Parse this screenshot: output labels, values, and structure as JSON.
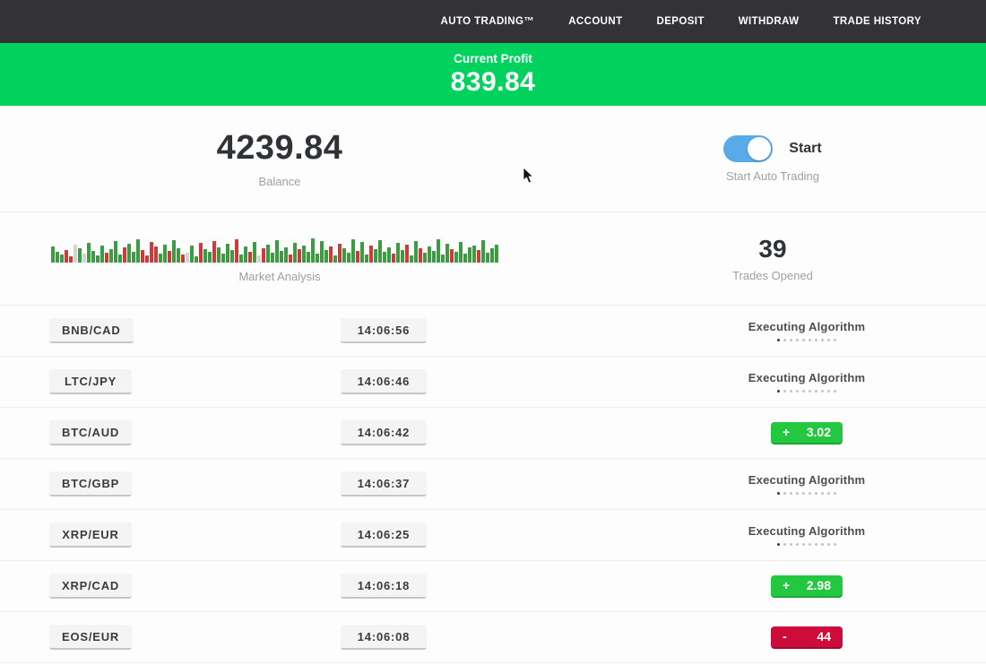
{
  "nav": {
    "items": [
      {
        "label": "AUTO TRADING™"
      },
      {
        "label": "ACCOUNT"
      },
      {
        "label": "DEPOSIT"
      },
      {
        "label": "WITHDRAW"
      },
      {
        "label": "TRADE HISTORY"
      }
    ]
  },
  "banner": {
    "label": "Current Profit",
    "value": "839.84",
    "color": "#00d35d"
  },
  "account": {
    "balance": "4239.84",
    "balance_label": "Balance",
    "toggle_label": "Start",
    "toggle_state": "on",
    "toggle_color": "#58aae8",
    "toggle_sub_label": "Start Auto Trading"
  },
  "market": {
    "chart_label": "Market Analysis",
    "trades_opened": "39",
    "trades_opened_label": "Trades Opened"
  },
  "chart_data": {
    "type": "bar",
    "title": "Market Analysis",
    "note": "decorative candlestick-style volume bars, bottom-aligned, heights in px",
    "colors": {
      "g": "#3d9c42",
      "r": "#cc3a3a",
      "l": "#cfd8cf"
    },
    "bars": [
      [
        18,
        "g"
      ],
      [
        12,
        "g"
      ],
      [
        9,
        "g"
      ],
      [
        14,
        "r"
      ],
      [
        7,
        "r"
      ],
      [
        20,
        "l"
      ],
      [
        16,
        "g"
      ],
      [
        10,
        "l"
      ],
      [
        22,
        "g"
      ],
      [
        13,
        "g"
      ],
      [
        8,
        "g"
      ],
      [
        19,
        "g"
      ],
      [
        11,
        "r"
      ],
      [
        15,
        "g"
      ],
      [
        24,
        "g"
      ],
      [
        9,
        "g"
      ],
      [
        17,
        "r"
      ],
      [
        21,
        "g"
      ],
      [
        12,
        "g"
      ],
      [
        26,
        "g"
      ],
      [
        14,
        "r"
      ],
      [
        8,
        "r"
      ],
      [
        23,
        "r"
      ],
      [
        18,
        "r"
      ],
      [
        10,
        "g"
      ],
      [
        20,
        "g"
      ],
      [
        13,
        "r"
      ],
      [
        25,
        "g"
      ],
      [
        16,
        "g"
      ],
      [
        9,
        "r"
      ],
      [
        11,
        "l"
      ],
      [
        19,
        "g"
      ],
      [
        7,
        "g"
      ],
      [
        22,
        "r"
      ],
      [
        15,
        "g"
      ],
      [
        12,
        "g"
      ],
      [
        24,
        "r"
      ],
      [
        17,
        "g"
      ],
      [
        10,
        "g"
      ],
      [
        21,
        "g"
      ],
      [
        14,
        "g"
      ],
      [
        26,
        "r"
      ],
      [
        9,
        "g"
      ],
      [
        18,
        "g"
      ],
      [
        12,
        "r"
      ],
      [
        23,
        "g"
      ],
      [
        8,
        "l"
      ],
      [
        16,
        "r"
      ],
      [
        20,
        "g"
      ],
      [
        11,
        "g"
      ],
      [
        25,
        "g"
      ],
      [
        13,
        "g"
      ],
      [
        17,
        "g"
      ],
      [
        9,
        "r"
      ],
      [
        22,
        "g"
      ],
      [
        15,
        "r"
      ],
      [
        19,
        "g"
      ],
      [
        12,
        "g"
      ],
      [
        27,
        "g"
      ],
      [
        10,
        "g"
      ],
      [
        24,
        "g"
      ],
      [
        14,
        "g"
      ],
      [
        18,
        "r"
      ],
      [
        8,
        "g"
      ],
      [
        21,
        "r"
      ],
      [
        16,
        "g"
      ],
      [
        11,
        "g"
      ],
      [
        26,
        "g"
      ],
      [
        13,
        "r"
      ],
      [
        23,
        "g"
      ],
      [
        9,
        "g"
      ],
      [
        19,
        "r"
      ],
      [
        15,
        "g"
      ],
      [
        25,
        "g"
      ],
      [
        12,
        "g"
      ],
      [
        17,
        "g"
      ],
      [
        10,
        "r"
      ],
      [
        22,
        "g"
      ],
      [
        14,
        "g"
      ],
      [
        20,
        "r"
      ],
      [
        8,
        "g"
      ],
      [
        24,
        "g"
      ],
      [
        16,
        "r"
      ],
      [
        11,
        "g"
      ],
      [
        18,
        "g"
      ],
      [
        13,
        "g"
      ],
      [
        26,
        "g"
      ],
      [
        9,
        "g"
      ],
      [
        21,
        "g"
      ],
      [
        15,
        "r"
      ],
      [
        12,
        "g"
      ],
      [
        23,
        "g"
      ],
      [
        10,
        "g"
      ],
      [
        17,
        "g"
      ],
      [
        19,
        "g"
      ],
      [
        14,
        "r"
      ],
      [
        25,
        "g"
      ],
      [
        11,
        "g"
      ],
      [
        16,
        "g"
      ],
      [
        20,
        "g"
      ]
    ]
  },
  "status_defaults": {
    "executing_label": "Executing Algorithm",
    "dots_count": 10,
    "active_dot_index": 0
  },
  "rows": [
    {
      "pair": "BNB/CAD",
      "time": "14:06:56",
      "status": "executing"
    },
    {
      "pair": "LTC/JPY",
      "time": "14:06:46",
      "status": "executing"
    },
    {
      "pair": "BTC/AUD",
      "time": "14:06:42",
      "status": "profit",
      "sign": "+",
      "value": "3.02"
    },
    {
      "pair": "BTC/GBP",
      "time": "14:06:37",
      "status": "executing"
    },
    {
      "pair": "XRP/EUR",
      "time": "14:06:25",
      "status": "executing"
    },
    {
      "pair": "XRP/CAD",
      "time": "14:06:18",
      "status": "profit",
      "sign": "+",
      "value": "2.98"
    },
    {
      "pair": "EOS/EUR",
      "time": "14:06:08",
      "status": "loss",
      "sign": "-",
      "value": "44"
    }
  ]
}
